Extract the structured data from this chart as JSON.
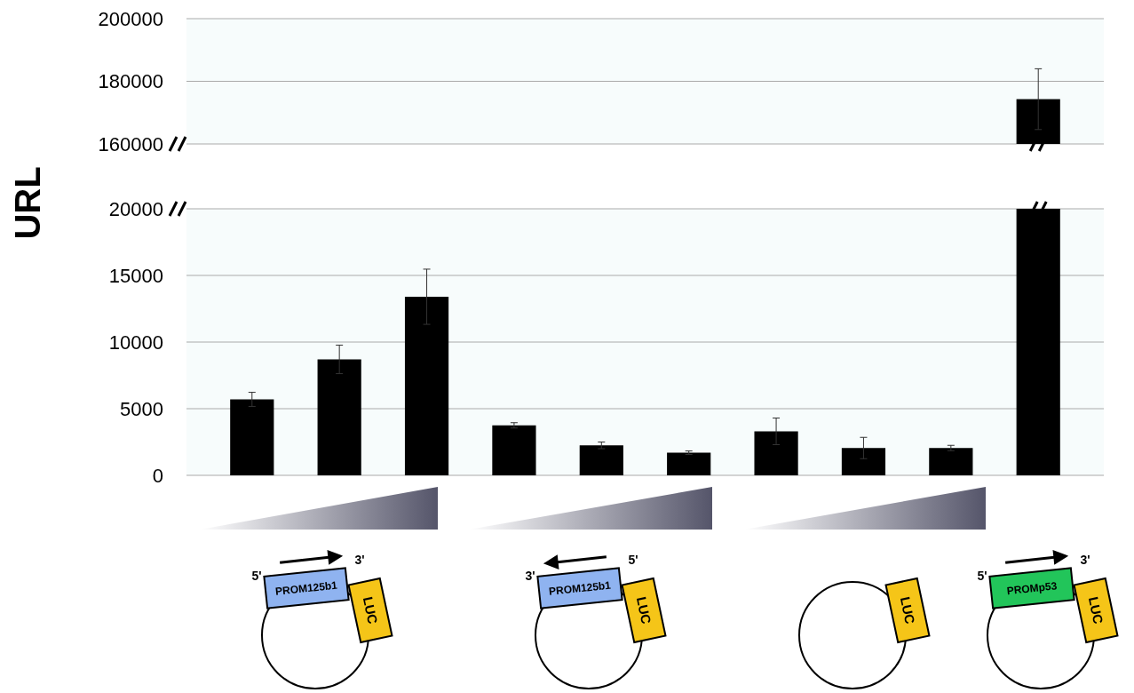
{
  "chart_data": [
    {
      "type": "bar",
      "categories": [
        null,
        null,
        null,
        null,
        null,
        null,
        null,
        null,
        null,
        null
      ],
      "values": [
        null,
        null,
        null,
        null,
        null,
        null,
        null,
        null,
        null,
        174300
      ],
      "errors": [
        null,
        null,
        null,
        null,
        null,
        null,
        null,
        null,
        null,
        9700
      ],
      "color": "#000000",
      "ylim": [
        160000,
        200000
      ],
      "yticks": [
        160000,
        180000,
        200000
      ],
      "grid": true
    },
    {
      "type": "bar",
      "ylabel": "URL",
      "categories": [
        null,
        null,
        null,
        null,
        null,
        null,
        null,
        null,
        null,
        null
      ],
      "values": [
        5700,
        8700,
        13400,
        3750,
        2250,
        1700,
        3300,
        2050,
        2050,
        20000
      ],
      "errors": [
        530,
        1070,
        2070,
        200,
        250,
        130,
        1000,
        800,
        200,
        null
      ],
      "color": "#000000",
      "ylim": [
        0,
        20000
      ],
      "yticks": [
        0,
        5000,
        10000,
        15000,
        20000
      ],
      "grid": true,
      "annotations": [
        "5'",
        "PROM125b1",
        "3'",
        "LUC",
        "3'",
        "PROM125b1",
        "5'",
        "LUC",
        "LUC",
        "5'",
        "PROMp53",
        "3'",
        "LUC"
      ]
    }
  ]
}
